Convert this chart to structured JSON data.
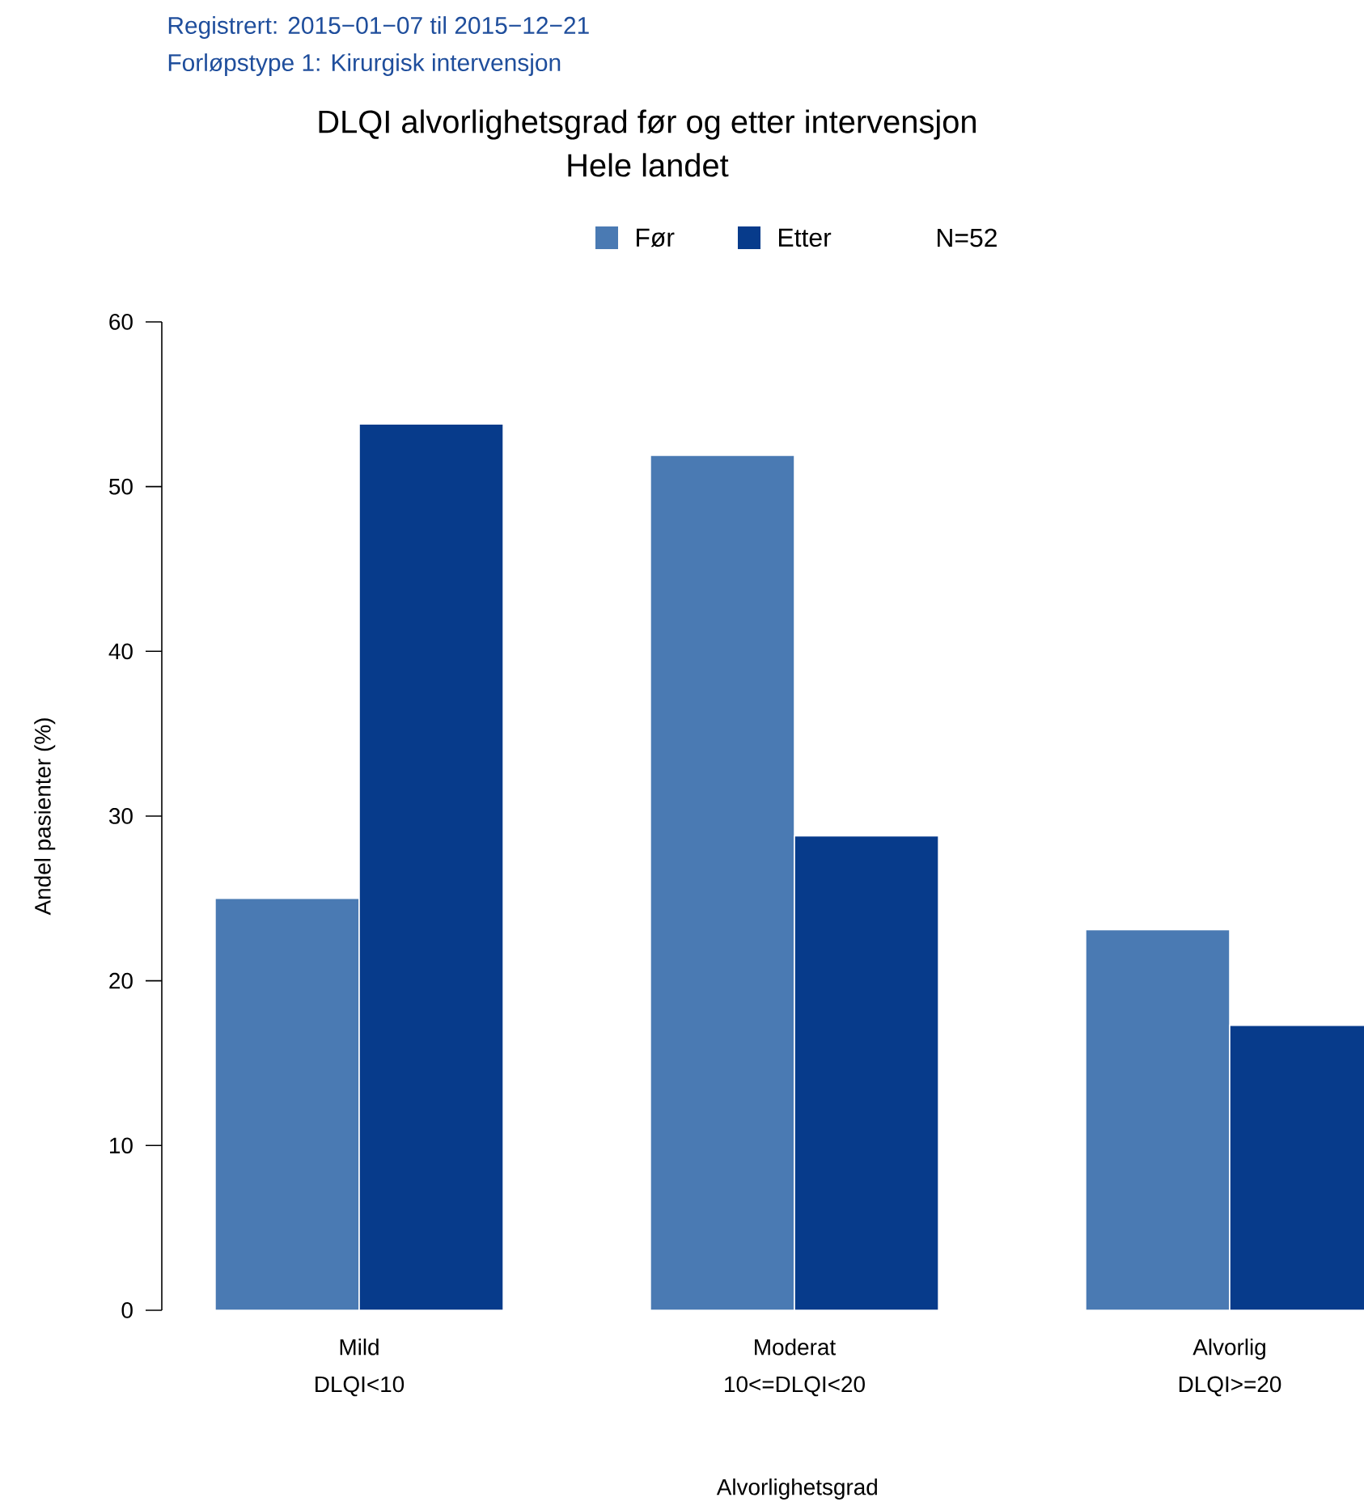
{
  "chart_data": {
    "type": "bar",
    "title": "DLQI alvorlighetsgrad før og etter intervensjon",
    "subtitle": "Hele landet",
    "annotations": [
      "Registrert: 2015−01−07 til 2015−12−21",
      "Forløpstype 1: Kirurgisk intervensjon",
      "N=52"
    ],
    "xlabel": "Alvorlighetsgrad",
    "ylabel": "Andel pasienter (%)",
    "categories": [
      "Mild DLQI<10",
      "Moderat 10<=DLQI<20",
      "Alvorlig DLQI>=20"
    ],
    "series": [
      {
        "name": "Før",
        "color": "#4a7ab3",
        "values": [
          25.0,
          51.9,
          23.1
        ]
      },
      {
        "name": "Etter",
        "color": "#073b8b",
        "values": [
          53.8,
          28.8,
          17.3
        ]
      }
    ],
    "ylim": [
      0,
      60
    ],
    "yticks": [
      0,
      10,
      20,
      30,
      40,
      50,
      60
    ],
    "legend": "top",
    "grid": false
  }
}
